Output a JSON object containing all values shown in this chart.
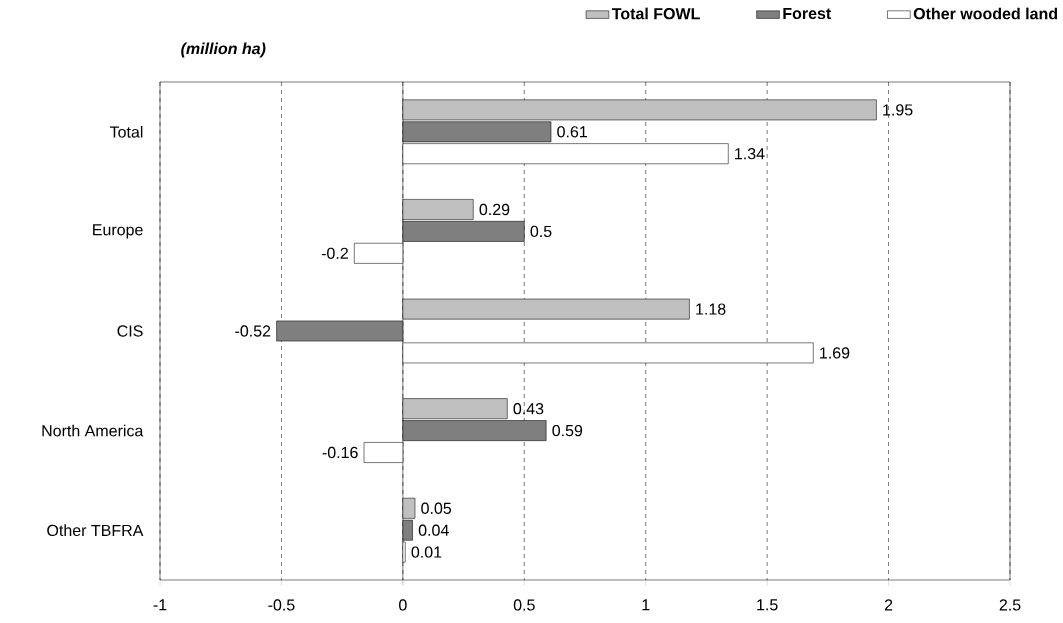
{
  "chart_data": {
    "type": "bar",
    "orientation": "horizontal",
    "annotations": [
      "(million ha)"
    ],
    "categories": [
      "Total",
      "Europe",
      "CIS",
      "North America",
      "Other TBFRA"
    ],
    "series": [
      {
        "name": "Total FOWL",
        "color": "#c0c0c0",
        "values": [
          1.95,
          0.29,
          1.18,
          0.43,
          0.05
        ],
        "value_labels": [
          "1.95",
          "0.29",
          "1.18",
          "0.43",
          "0.05"
        ]
      },
      {
        "name": "Forest",
        "color": "#7f7f7f",
        "values": [
          0.61,
          0.5,
          -0.52,
          0.59,
          0.04
        ],
        "value_labels": [
          "0.61",
          "0.5",
          "-0.52",
          "0.59",
          "0.04"
        ]
      },
      {
        "name": "Other wooded land",
        "color": "#ffffff",
        "values": [
          1.34,
          -0.2,
          1.69,
          -0.16,
          0.01
        ],
        "value_labels": [
          "1.34",
          "-0.2",
          "1.69",
          "-0.16",
          "0.01"
        ]
      }
    ],
    "xlim": [
      -1,
      2.5
    ],
    "xticks": [
      -1,
      -0.5,
      0,
      0.5,
      1,
      1.5,
      2,
      2.5
    ],
    "grid": "x",
    "legend": "top right"
  }
}
